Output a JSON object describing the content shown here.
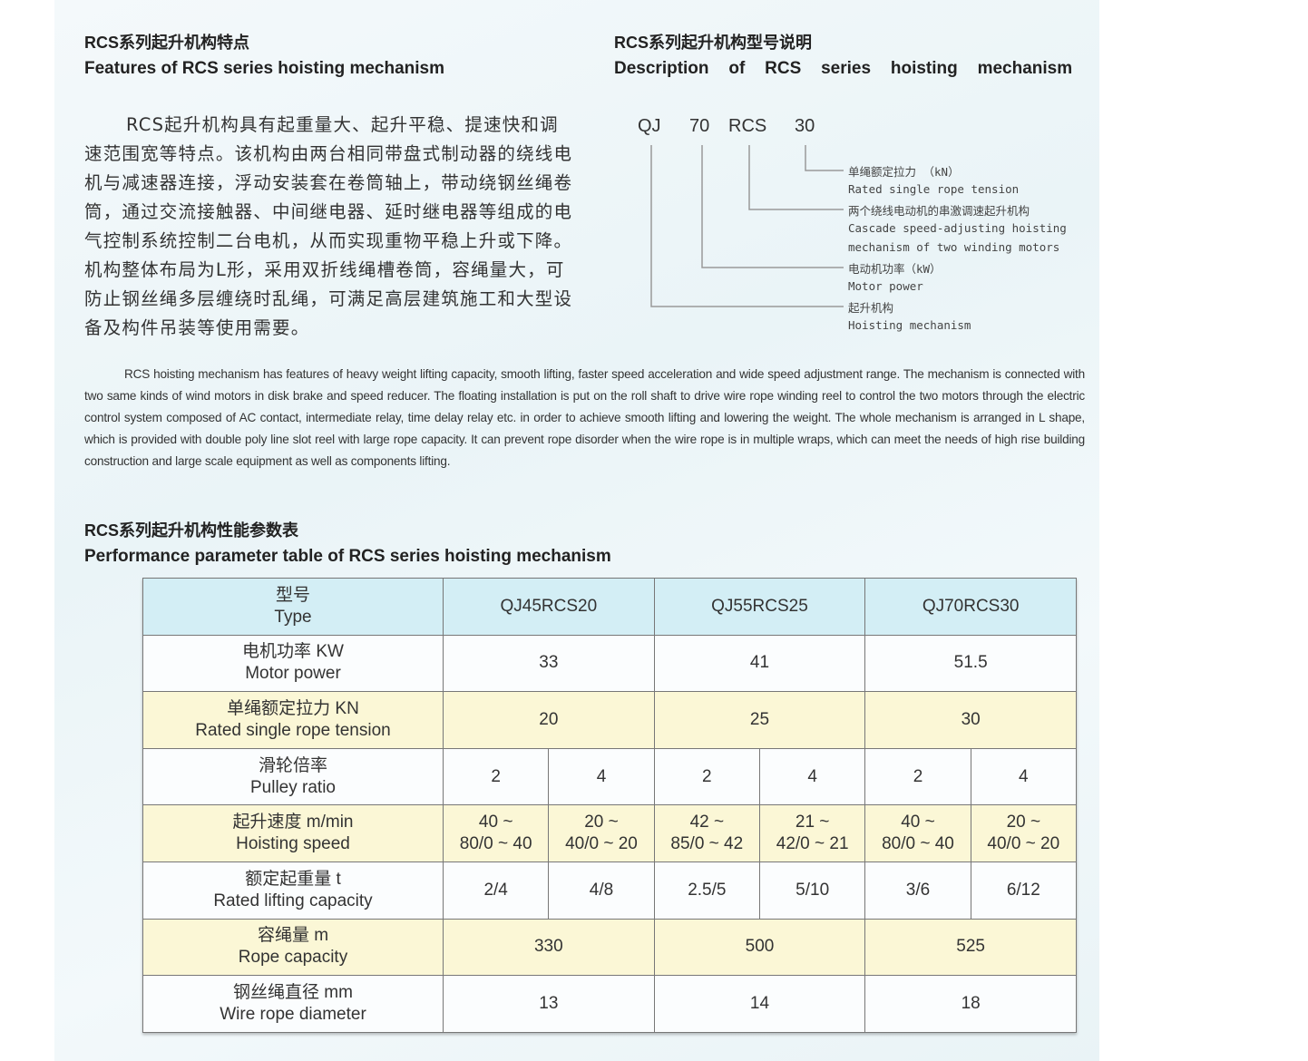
{
  "features": {
    "title_cn": "RCS系列起升机构特点",
    "title_en": "Features of RCS series hoisting mechanism",
    "paragraph_cn": "RCS起升机构具有起重量大、起升平稳、提速快和调速范围宽等特点。该机构由两台相同带盘式制动器的绕线电机与减速器连接，浮动安装套在卷筒轴上，带动绕钢丝绳卷筒，通过交流接触器、中间继电器、延时继电器等组成的电气控制系统控制二台电机，从而实现重物平稳上升或下降。机构整体布局为L形，采用双折线绳槽卷筒，容绳量大，可防止钢丝绳多层缠绕时乱绳，可满足高层建筑施工和大型设备及构件吊装等使用需要。",
    "paragraph_en": "RCS hoisting mechanism has features of heavy weight lifting capacity, smooth lifting, faster speed acceleration and wide speed adjustment range. The mechanism is connected with two same kinds of wind motors in disk brake and speed reducer. The floating installation is put on the roll shaft to drive wire rope winding reel to control the two motors through the electric control system composed of AC contact, intermediate relay, time delay relay etc. in order to achieve smooth lifting and lowering the weight. The whole mechanism is arranged in L shape, which is provided with double poly line slot reel with large rope capacity. It can prevent rope disorder when the wire rope is in multiple wraps, which can meet the needs of high rise building construction and large scale equipment as well as components lifting."
  },
  "description": {
    "title_cn": "RCS系列起升机构型号说明",
    "title_en": "Description   of   RCS   series   hoisting   mechanism",
    "code_parts": [
      "QJ",
      "70",
      "RCS",
      "30"
    ],
    "labels": [
      "单绳额定拉力 （kN）",
      "Rated single rope tension",
      "两个绕线电动机的串激调速起升机构",
      "Cascade speed-adjusting hoisting",
      "mechanism of two winding motors",
      "电动机功率（kW）",
      "Motor power",
      "起升机构",
      "Hoisting mechanism"
    ]
  },
  "table": {
    "title_cn": "RCS系列起升机构性能参数表",
    "title_en": "Performance parameter table of RCS series hoisting mechanism",
    "header": {
      "cn": "型号",
      "en": "Type",
      "models": [
        "QJ45RCS20",
        "QJ55RCS25",
        "QJ70RCS30"
      ]
    },
    "rows": [
      {
        "cn": "电机功率 KW",
        "en": "Motor  power",
        "values": [
          "33",
          "41",
          "51.5"
        ]
      },
      {
        "cn": "单绳额定拉力 KN",
        "en": "Rated single rope tension",
        "values": [
          "20",
          "25",
          "30"
        ]
      },
      {
        "cn": "滑轮倍率",
        "en": "Pulley ratio",
        "values": [
          "2",
          "4",
          "2",
          "4",
          "2",
          "4"
        ]
      },
      {
        "cn": "起升速度 m/min",
        "en": "Hoisting speed",
        "values": [
          "40 ~",
          "80/0 ~ 40",
          "20 ~",
          "40/0 ~ 20",
          "42 ~",
          "85/0 ~ 42",
          "21 ~",
          "42/0 ~ 21",
          "40 ~",
          "80/0 ~ 40",
          "20 ~",
          "40/0 ~ 20"
        ]
      },
      {
        "cn": "额定起重量 t",
        "en": "Rated lifting capacity",
        "values": [
          "2/4",
          "4/8",
          "2.5/5",
          "5/10",
          "3/6",
          "6/12"
        ]
      },
      {
        "cn": "容绳量 m",
        "en": "Rope capacity",
        "values": [
          "330",
          "500",
          "525"
        ]
      },
      {
        "cn": "钢丝绳直径 mm",
        "en": "Wire rope diameter",
        "values": [
          "13",
          "14",
          "18"
        ]
      }
    ],
    "colors": {
      "header": "#d3eef5",
      "highlight": "#fbf7d6",
      "plain": "#fbfdfe"
    }
  }
}
